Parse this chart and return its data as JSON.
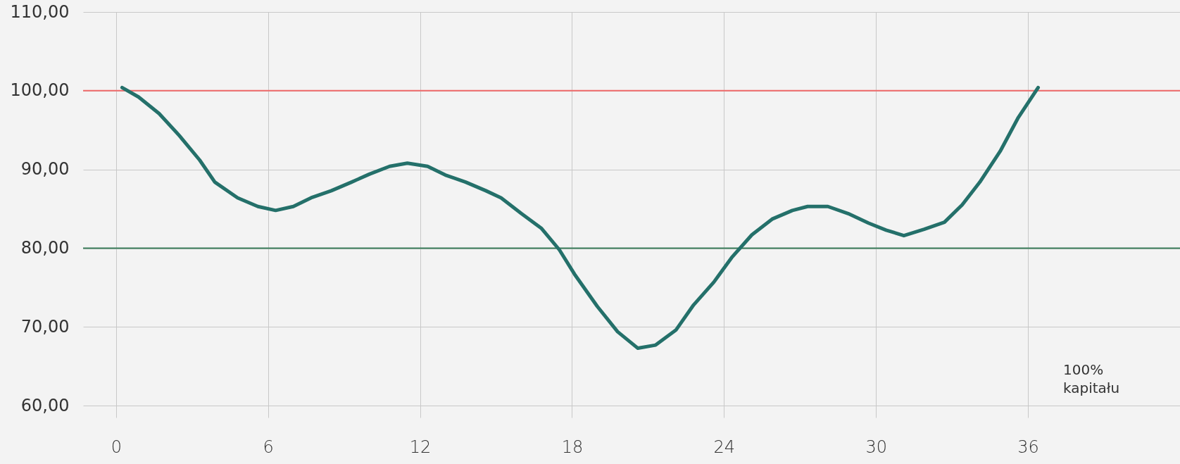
{
  "chart_data": {
    "type": "line",
    "series": [
      {
        "color": "#24706a",
        "x": [
          0.24,
          0.89,
          1.7,
          2.5,
          3.3,
          3.9,
          4.8,
          5.6,
          6.3,
          7.0,
          7.7,
          8.5,
          9.3,
          10.0,
          10.8,
          11.5,
          12.3,
          13.0,
          13.8,
          14.6,
          15.2,
          16.0,
          16.8,
          17.5,
          18.1,
          19.0,
          19.8,
          20.6,
          21.3,
          22.1,
          22.8,
          23.6,
          24.3,
          25.1,
          25.9,
          26.7,
          27.3,
          28.1,
          28.9,
          29.7,
          30.4,
          31.1,
          31.9,
          32.7,
          33.4,
          34.1,
          34.9,
          35.6,
          36.4
        ],
        "values": [
          100.4,
          99.2,
          97.1,
          94.3,
          91.2,
          88.4,
          86.4,
          85.3,
          84.8,
          85.3,
          86.4,
          87.3,
          88.4,
          89.4,
          90.4,
          90.8,
          90.4,
          89.3,
          88.4,
          87.3,
          86.4,
          84.4,
          82.5,
          79.8,
          76.7,
          72.6,
          69.4,
          67.3,
          67.7,
          69.6,
          72.8,
          75.7,
          78.8,
          81.7,
          83.7,
          84.8,
          85.3,
          85.3,
          84.4,
          83.2,
          82.3,
          81.6,
          82.4,
          83.3,
          85.5,
          88.4,
          92.3,
          96.5,
          100.4
        ]
      }
    ],
    "xlim": [
      -1.3,
      42
    ],
    "xticks": [
      0,
      6,
      12,
      18,
      24,
      30,
      36
    ],
    "ylim": [
      58.5,
      110
    ],
    "yticks": [
      {
        "value": 60,
        "label": "60,00"
      },
      {
        "value": 70,
        "label": "70,00"
      },
      {
        "value": 80,
        "label": "80,00"
      },
      {
        "value": 90,
        "label": "90,00"
      },
      {
        "value": 100,
        "label": "100,00"
      },
      {
        "value": 110,
        "label": "110,00"
      }
    ],
    "ref_lines": [
      {
        "axis": "y",
        "value": 100,
        "color": "#f06a6a"
      },
      {
        "axis": "y",
        "value": 80,
        "color": "#3a7d5a"
      }
    ],
    "annotations": [
      "100%\nkapitału"
    ],
    "grid": true,
    "marker": "none",
    "line_style": "solid"
  }
}
